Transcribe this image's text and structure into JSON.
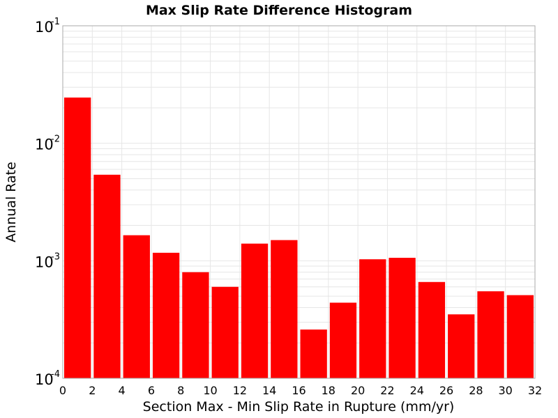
{
  "chart_data": {
    "type": "bar",
    "title": "Max Slip Rate Difference Histogram",
    "xlabel": "Section Max - Min Slip Rate in Rupture (mm/yr)",
    "ylabel": "Annual Rate",
    "y_scale": "log",
    "xlim": [
      0,
      32
    ],
    "ylim": [
      0.0001,
      0.1
    ],
    "bin_width": 2,
    "grid": true,
    "colors": {
      "bar": "#ff0000",
      "grid": "#e6e6e6",
      "frame": "#aaaaaa"
    },
    "x_ticks": [
      "0",
      "2",
      "4",
      "6",
      "8",
      "10",
      "12",
      "14",
      "16",
      "18",
      "20",
      "22",
      "24",
      "26",
      "28",
      "30",
      "32"
    ],
    "y_ticks": [
      {
        "base": "10",
        "exp": "-4",
        "value": 0.0001
      },
      {
        "base": "10",
        "exp": "-3",
        "value": 0.001
      },
      {
        "base": "10",
        "exp": "-2",
        "value": 0.01
      },
      {
        "base": "10",
        "exp": "-1",
        "value": 0.1
      }
    ],
    "bins": [
      {
        "x0": 0,
        "x1": 2,
        "value": 0.0245
      },
      {
        "x0": 2,
        "x1": 4,
        "value": 0.0054
      },
      {
        "x0": 4,
        "x1": 6,
        "value": 0.00165
      },
      {
        "x0": 6,
        "x1": 8,
        "value": 0.00117
      },
      {
        "x0": 8,
        "x1": 10,
        "value": 0.0008
      },
      {
        "x0": 10,
        "x1": 12,
        "value": 0.0006
      },
      {
        "x0": 12,
        "x1": 14,
        "value": 0.0014
      },
      {
        "x0": 14,
        "x1": 16,
        "value": 0.0015
      },
      {
        "x0": 16,
        "x1": 18,
        "value": 0.00026
      },
      {
        "x0": 18,
        "x1": 20,
        "value": 0.00044
      },
      {
        "x0": 20,
        "x1": 22,
        "value": 0.00103
      },
      {
        "x0": 22,
        "x1": 24,
        "value": 0.00106
      },
      {
        "x0": 24,
        "x1": 26,
        "value": 0.00066
      },
      {
        "x0": 26,
        "x1": 28,
        "value": 0.00035
      },
      {
        "x0": 28,
        "x1": 30,
        "value": 0.00055
      },
      {
        "x0": 30,
        "x1": 32,
        "value": 0.00051
      }
    ]
  }
}
